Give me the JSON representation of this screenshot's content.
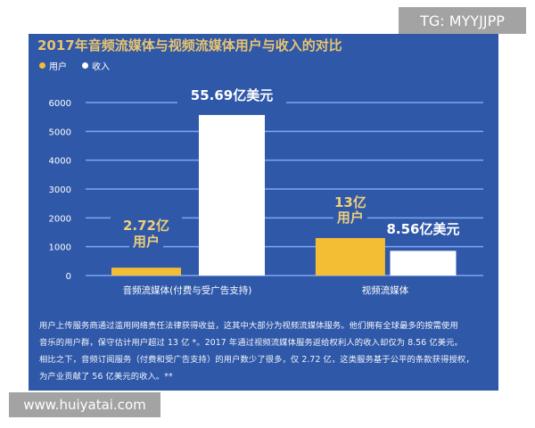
{
  "chart_data": {
    "type": "bar",
    "title": "2017年音频流媒体与视频流媒体用户与收入的对比",
    "categories": [
      "音频流媒体(付费与受广告支持)",
      "视频流媒体"
    ],
    "series": [
      {
        "name": "用户",
        "values": [
          272,
          1300
        ],
        "color": "#f3bd34",
        "labels": [
          [
            "2.72亿",
            "用户"
          ],
          [
            "13亿",
            "用户"
          ]
        ],
        "label_color": "#efcf7a"
      },
      {
        "name": "收入",
        "values": [
          5569,
          856
        ],
        "color": "#ffffff",
        "labels": [
          [
            "55.69亿美元"
          ],
          [
            "8.56亿美元"
          ]
        ],
        "label_color": "#ffffff"
      }
    ],
    "yticks": [
      0,
      1000,
      2000,
      3000,
      4000,
      5000,
      6000
    ],
    "ylim": [
      0,
      6000
    ],
    "grid": true,
    "legend_position": "top-left"
  },
  "colors": {
    "background": "#2f58a8",
    "title": "#e9c46f",
    "gridline": "#7fa6f0"
  },
  "notes": [
    "用户上传服务商通过滥用网络责任法律获得收益，这其中大部分为视频流媒体服务。他们拥有全球最多的按需使用",
    "音乐的用户群，保守估计用户超过 13 亿 *。2017 年通过视频流媒体服务返给权利人的收入却仅为 8.56 亿美元。",
    "相比之下，音频订阅服务（付费和受广告支持）的用户数少了很多，仅 2.72 亿，这类服务基于公平的条款获得授权，",
    "为产业贡献了 56 亿美元的收入。**"
  ],
  "watermarks": {
    "top_right": "TG: MYYJJPP",
    "bottom_left": "www.huiyatai.com"
  }
}
